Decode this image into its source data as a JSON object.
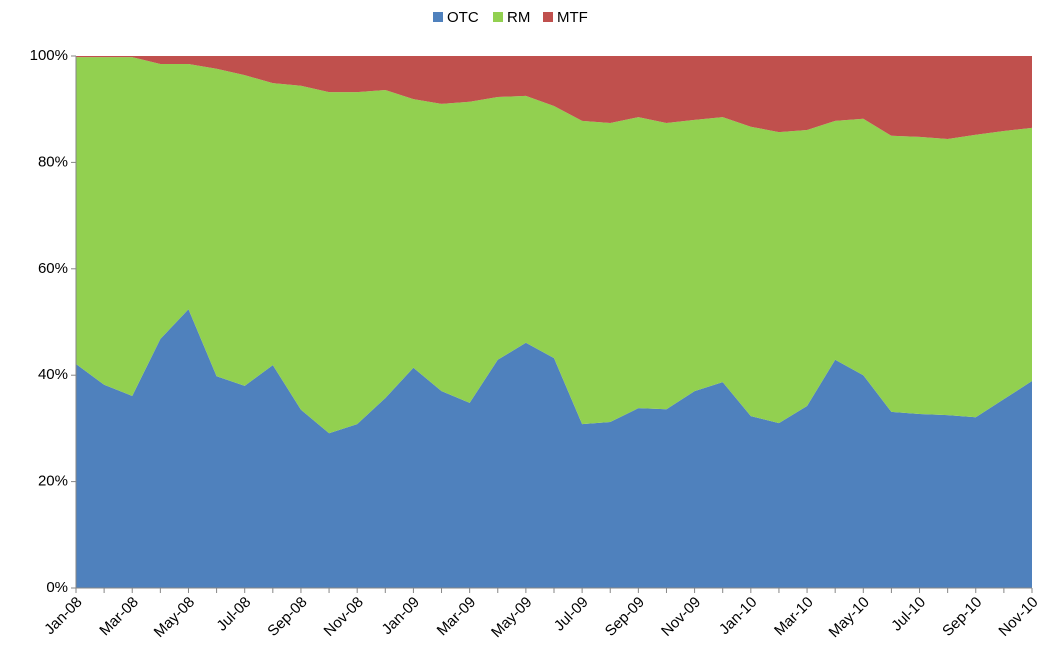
{
  "chart_data": {
    "type": "stacked_area",
    "categories": [
      "Jan-08",
      null,
      "Mar-08",
      null,
      "May-08",
      null,
      "Jul-08",
      null,
      "Sep-08",
      null,
      "Nov-08",
      null,
      "Jan-09",
      null,
      "Mar-09",
      null,
      "May-09",
      null,
      "Jul-09",
      null,
      "Sep-09",
      null,
      "Nov-09",
      null,
      "Jan-10",
      null,
      "Mar-10",
      null,
      "May-10",
      null,
      "Jul-10",
      null,
      "Sep-10",
      null,
      "Nov-10"
    ],
    "series": [
      {
        "name": "OTC",
        "color": "#4f81bd",
        "values": [
          42.1,
          38.2,
          36.1,
          46.8,
          52.4,
          39.8,
          38.0,
          41.9,
          33.5,
          29.1,
          30.8,
          35.7,
          41.4,
          37.0,
          34.8,
          42.9,
          46.1,
          43.2,
          30.8,
          31.2,
          33.8,
          33.6,
          37.0,
          38.7,
          32.3,
          31.0,
          34.2,
          42.9,
          40.0,
          33.1,
          32.7,
          32.5,
          32.1,
          35.5,
          38.9
        ]
      },
      {
        "name": "RM",
        "color": "#92d050",
        "values": [
          57.7,
          61.6,
          63.7,
          51.7,
          46.1,
          57.8,
          58.4,
          53.0,
          60.9,
          64.1,
          62.4,
          57.9,
          50.5,
          54.0,
          56.6,
          49.4,
          46.4,
          47.4,
          57.0,
          56.2,
          54.7,
          53.8,
          51.0,
          49.8,
          54.4,
          54.7,
          51.9,
          44.9,
          48.2,
          51.9,
          52.1,
          51.9,
          53.1,
          50.4,
          47.6
        ]
      },
      {
        "name": "MTF",
        "color": "#c0504d",
        "values": [
          0.2,
          0.2,
          0.2,
          1.5,
          1.5,
          2.4,
          3.6,
          5.1,
          5.6,
          6.8,
          6.8,
          6.4,
          8.1,
          9.0,
          8.6,
          7.7,
          7.5,
          9.4,
          12.2,
          12.6,
          11.5,
          12.6,
          12.0,
          11.5,
          13.3,
          14.3,
          13.9,
          12.2,
          11.8,
          15.0,
          15.2,
          15.6,
          14.8,
          14.1,
          13.5
        ]
      }
    ],
    "ylim": [
      0,
      100
    ],
    "yticks": [
      {
        "value": 0,
        "label": "0%"
      },
      {
        "value": 20,
        "label": "20%"
      },
      {
        "value": 40,
        "label": "40%"
      },
      {
        "value": 60,
        "label": "60%"
      },
      {
        "value": 80,
        "label": "80%"
      },
      {
        "value": 100,
        "label": "100%"
      }
    ],
    "legend": "top"
  }
}
